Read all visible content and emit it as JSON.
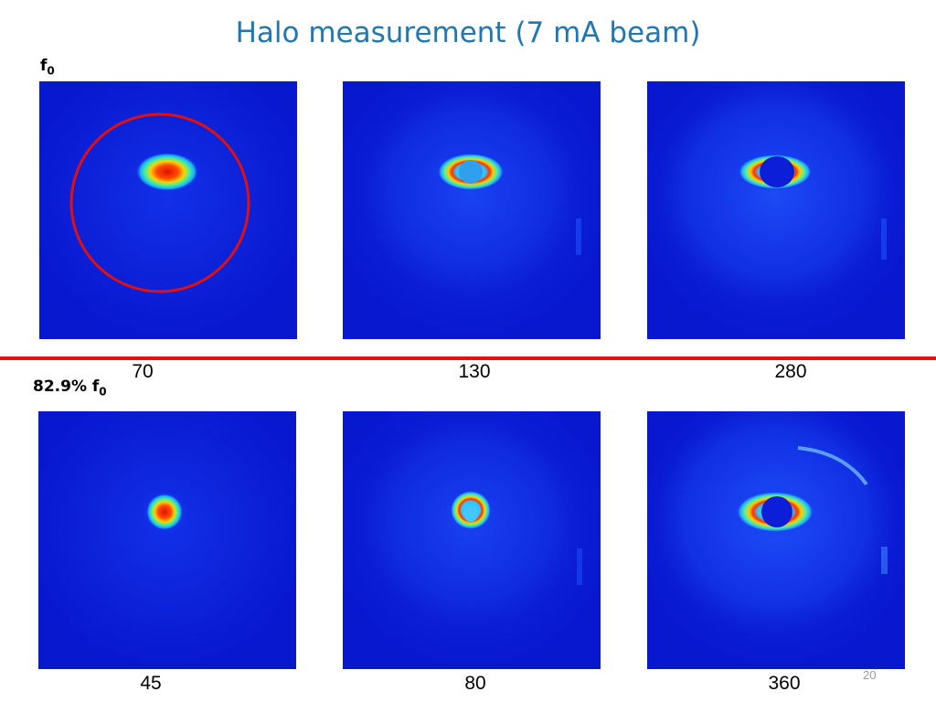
{
  "title": "Halo measurement (7 mA beam)",
  "rows": [
    {
      "label_main": "f",
      "label_sub": "0",
      "captions": [
        "70",
        "130",
        "280"
      ]
    },
    {
      "label_main": "82.9% f",
      "label_sub": "0",
      "captions": [
        "45",
        "80",
        "360"
      ]
    }
  ],
  "page_number": "20",
  "colors": {
    "title": "#1f77b4",
    "divider": "#e81010",
    "circle": "#e01010",
    "background_field": "#0a1fd6"
  }
}
